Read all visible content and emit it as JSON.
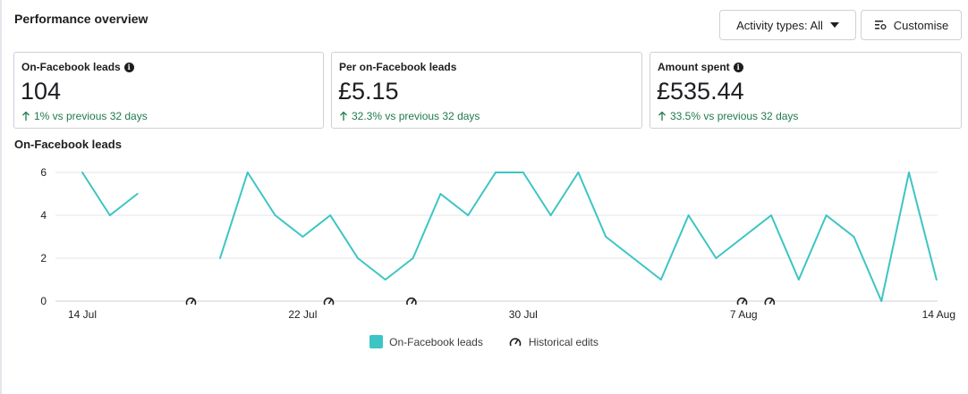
{
  "header": {
    "title": "Performance overview"
  },
  "toolbar": {
    "activity_label": "Activity types: All",
    "customise_label": "Customise"
  },
  "cards": [
    {
      "title": "On-Facebook leads",
      "value": "104",
      "delta": "1% vs previous 32 days",
      "has_info": true
    },
    {
      "title": "Per on-Facebook leads",
      "value": "£5.15",
      "delta": "32.3% vs previous 32 days",
      "has_info": false
    },
    {
      "title": "Amount spent",
      "value": "£535.44",
      "delta": "33.5% vs previous 32 days",
      "has_info": true
    }
  ],
  "chart": {
    "title": "On-Facebook leads"
  },
  "legend": {
    "series_label": "On-Facebook leads",
    "edits_label": "Historical edits"
  },
  "colors": {
    "line": "#3cc5c4",
    "delta_green": "#1f7a4d",
    "border": "#ced0d4"
  },
  "chart_data": {
    "type": "line",
    "x_start_day": "14 Jul",
    "x_tick_labels": [
      "14 Jul",
      "22 Jul",
      "30 Jul",
      "7 Aug",
      "14 Aug"
    ],
    "x_tick_day_index": [
      0,
      8,
      16,
      24,
      31
    ],
    "y_ticks": [
      0,
      2,
      4,
      6
    ],
    "ylim": [
      0,
      6
    ],
    "grid": true,
    "series": [
      {
        "name": "On-Facebook leads",
        "values": [
          6,
          4,
          5,
          null,
          null,
          2,
          6,
          4,
          3,
          4,
          2,
          1,
          2,
          5,
          4,
          6,
          6,
          4,
          6,
          3,
          null,
          1,
          4,
          2,
          3,
          4,
          1,
          4,
          3,
          0,
          6,
          1
        ],
        "segments": [
          [
            0,
            2
          ],
          [
            5,
            19
          ],
          [
            19,
            31
          ]
        ]
      }
    ],
    "historical_edit_days": [
      5,
      10,
      13,
      25,
      26
    ]
  }
}
